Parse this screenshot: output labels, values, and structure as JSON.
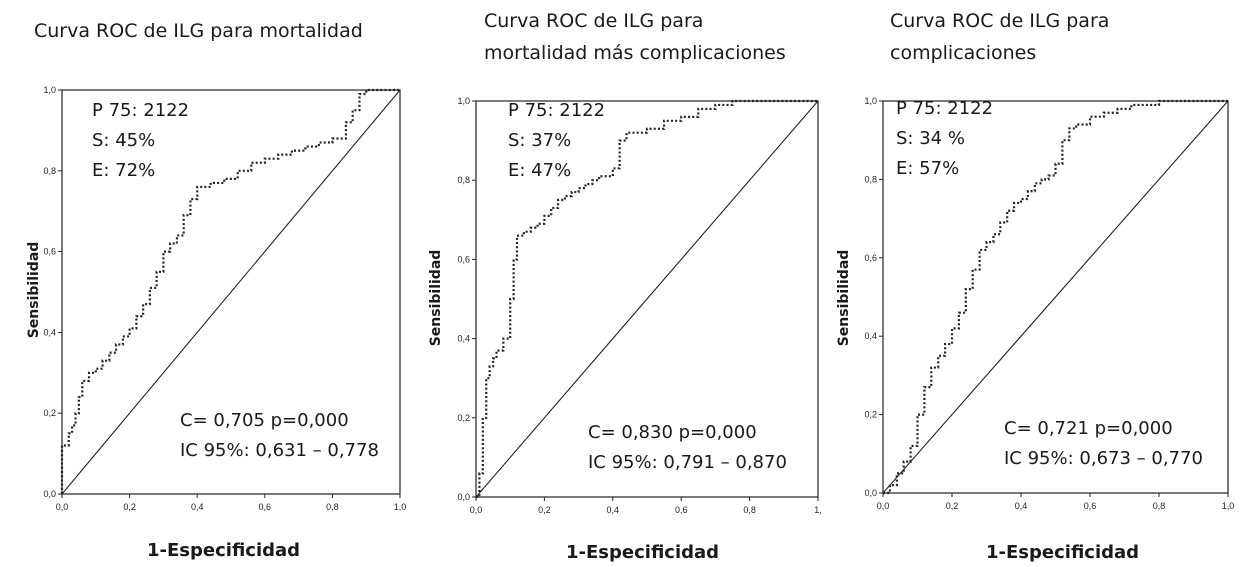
{
  "chart_data": [
    {
      "type": "line",
      "title": "Curva ROC de ILG para mortalidad",
      "title_lines": [
        "Curva ROC de ILG para mortalidad"
      ],
      "xlabel": "1-Especificidad",
      "ylabel": "Sensibilidad",
      "xlim": [
        0,
        1
      ],
      "ylim": [
        0,
        1
      ],
      "x_ticks": [
        "0,0",
        "0,2",
        "0,4",
        "0,6",
        "0,8",
        "1,0"
      ],
      "y_ticks": [
        "0,0",
        "0,2",
        "0,4",
        "0,6",
        "0,8",
        "1,0"
      ],
      "annotations": {
        "cutoff": "P 75: 2122",
        "sens": "S: 45%",
        "spec": "E: 72%",
        "auc": "C= 0,705   p=0,000",
        "ci": "IC 95%: 0,631 – 0,778"
      },
      "series": [
        {
          "style": "dotted",
          "x": [
            0,
            0,
            0.02,
            0.03,
            0.04,
            0.05,
            0.06,
            0.08,
            0.1,
            0.12,
            0.14,
            0.16,
            0.18,
            0.2,
            0.22,
            0.24,
            0.26,
            0.28,
            0.3,
            0.32,
            0.34,
            0.36,
            0.38,
            0.4,
            0.44,
            0.48,
            0.52,
            0.56,
            0.6,
            0.64,
            0.68,
            0.72,
            0.76,
            0.8,
            0.84,
            0.86,
            0.88,
            0.9,
            0.95,
            1.0
          ],
          "y": [
            0,
            0.12,
            0.15,
            0.17,
            0.2,
            0.24,
            0.28,
            0.3,
            0.31,
            0.33,
            0.35,
            0.37,
            0.39,
            0.41,
            0.44,
            0.47,
            0.51,
            0.55,
            0.6,
            0.62,
            0.64,
            0.69,
            0.73,
            0.76,
            0.77,
            0.78,
            0.8,
            0.82,
            0.83,
            0.84,
            0.85,
            0.86,
            0.87,
            0.88,
            0.92,
            0.95,
            0.99,
            1.0,
            1.0,
            1.0
          ]
        },
        {
          "style": "solid",
          "x": [
            0,
            1
          ],
          "y": [
            0,
            1
          ]
        }
      ]
    },
    {
      "type": "line",
      "title": "Curva ROC de ILG para mortalidad más complicaciones",
      "title_lines": [
        "Curva ROC de ILG para",
        "mortalidad más complicaciones"
      ],
      "xlabel": "1-Especificidad",
      "ylabel": "Sensibilidad",
      "xlim": [
        0,
        1
      ],
      "ylim": [
        0,
        1
      ],
      "x_ticks": [
        "0,0",
        "0,2",
        "0,4",
        "0,6",
        "0,8",
        "1,"
      ],
      "y_ticks": [
        "0,0",
        "0,2",
        "0,4",
        "0,6",
        "0,8",
        "1,0"
      ],
      "annotations": {
        "cutoff": "P 75: 2122",
        "sens": "S: 37%",
        "spec": "E: 47%",
        "auc": "C= 0,830    p=0,000",
        "ci": "IC 95%: 0,791 – 0,870"
      },
      "series": [
        {
          "style": "dotted",
          "x": [
            0,
            0.01,
            0.02,
            0.03,
            0.04,
            0.05,
            0.06,
            0.08,
            0.1,
            0.11,
            0.12,
            0.14,
            0.16,
            0.18,
            0.2,
            0.22,
            0.24,
            0.26,
            0.28,
            0.3,
            0.32,
            0.34,
            0.36,
            0.38,
            0.4,
            0.42,
            0.44,
            0.46,
            0.5,
            0.55,
            0.6,
            0.65,
            0.7,
            0.75,
            0.8,
            0.85,
            0.9,
            0.95,
            1.0
          ],
          "y": [
            0,
            0.06,
            0.2,
            0.3,
            0.33,
            0.35,
            0.37,
            0.4,
            0.5,
            0.6,
            0.66,
            0.67,
            0.68,
            0.69,
            0.71,
            0.73,
            0.75,
            0.76,
            0.77,
            0.78,
            0.79,
            0.8,
            0.81,
            0.81,
            0.83,
            0.9,
            0.92,
            0.92,
            0.93,
            0.95,
            0.96,
            0.98,
            0.99,
            1.0,
            1.0,
            1.0,
            1.0,
            1.0,
            1.0
          ]
        },
        {
          "style": "solid",
          "x": [
            0,
            1
          ],
          "y": [
            0,
            1
          ]
        }
      ]
    },
    {
      "type": "line",
      "title": "Curva ROC de ILG para complicaciones",
      "title_lines": [
        "Curva ROC de ILG para",
        "complicaciones"
      ],
      "xlabel": "1-Especificidad",
      "ylabel": "Sensibilidad",
      "xlim": [
        0,
        1
      ],
      "ylim": [
        0,
        1
      ],
      "x_ticks": [
        "0,0",
        "0,2",
        "0,4",
        "0,6",
        "0,8",
        "1,0"
      ],
      "y_ticks": [
        "0,0",
        "0,2",
        "0,4",
        "0,6",
        "0,8",
        "1,0"
      ],
      "annotations": {
        "cutoff": "P 75: 2122",
        "sens": "S: 34 %",
        "spec": "E: 57%",
        "auc": "C= 0,721    p=0,000",
        "ci": "IC 95%: 0,673 – 0,770"
      },
      "series": [
        {
          "style": "dotted",
          "x": [
            0,
            0.02,
            0.04,
            0.06,
            0.08,
            0.1,
            0.12,
            0.14,
            0.16,
            0.18,
            0.2,
            0.22,
            0.24,
            0.26,
            0.28,
            0.3,
            0.32,
            0.34,
            0.36,
            0.38,
            0.4,
            0.42,
            0.44,
            0.46,
            0.48,
            0.5,
            0.52,
            0.54,
            0.56,
            0.6,
            0.64,
            0.68,
            0.72,
            0.76,
            0.8,
            0.85,
            0.9,
            0.95,
            1.0
          ],
          "y": [
            0,
            0.02,
            0.05,
            0.08,
            0.12,
            0.2,
            0.27,
            0.32,
            0.35,
            0.38,
            0.42,
            0.46,
            0.52,
            0.57,
            0.62,
            0.64,
            0.66,
            0.69,
            0.72,
            0.74,
            0.75,
            0.77,
            0.79,
            0.8,
            0.81,
            0.84,
            0.9,
            0.93,
            0.94,
            0.96,
            0.97,
            0.98,
            0.99,
            0.99,
            1.0,
            1.0,
            1.0,
            1.0,
            1.0
          ]
        },
        {
          "style": "solid",
          "x": [
            0,
            1
          ],
          "y": [
            0,
            1
          ]
        }
      ]
    }
  ]
}
